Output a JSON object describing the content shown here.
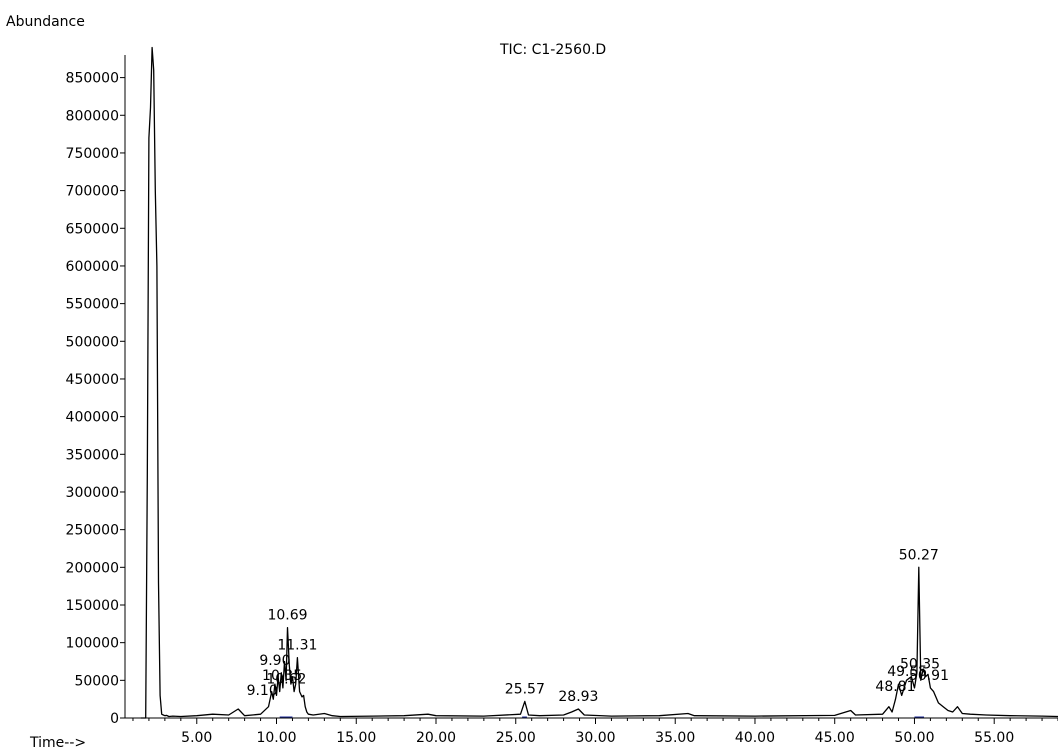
{
  "chart_data": {
    "type": "line",
    "title": "TIC: C1-2560.D",
    "ylabel": "Abundance",
    "xlabel": "Time-->",
    "xlim": [
      0.5,
      59.0
    ],
    "ylim": [
      0,
      880000
    ],
    "x_ticks": [
      "5.00",
      "10.00",
      "15.00",
      "20.00",
      "25.00",
      "30.00",
      "35.00",
      "40.00",
      "45.00",
      "50.00",
      "55.00"
    ],
    "y_ticks": [
      "0",
      "50000",
      "100000",
      "150000",
      "200000",
      "250000",
      "300000",
      "350000",
      "400000",
      "450000",
      "500000",
      "550000",
      "600000",
      "650000",
      "700000",
      "750000",
      "800000",
      "850000"
    ],
    "series": [
      {
        "x": [
          1.5,
          1.8,
          1.9,
          2.0,
          2.1,
          2.2,
          2.3,
          2.4,
          2.5,
          2.6,
          2.7,
          2.8,
          2.9,
          3.0,
          3.1,
          3.25,
          3.5,
          4.0,
          5.0,
          6.0,
          7.0,
          7.6,
          8.0,
          9.0,
          9.5,
          9.7,
          9.8,
          9.9,
          10.0,
          10.1,
          10.2,
          10.3,
          10.4,
          10.5,
          10.6,
          10.69,
          10.8,
          10.9,
          11.0,
          11.1,
          11.2,
          11.31,
          11.45,
          11.6,
          11.7,
          11.8,
          11.9,
          12.0,
          12.3,
          13.0,
          13.5,
          14.0,
          16.0,
          18.0,
          19.5,
          20.0,
          23.0,
          25.3,
          25.57,
          25.8,
          26.5,
          28.0,
          28.5,
          28.93,
          29.3,
          31.0,
          34.0,
          35.8,
          36.2,
          40.0,
          45.0,
          46.0,
          46.3,
          48.0,
          48.4,
          48.6,
          48.81,
          49.0,
          49.2,
          49.5,
          49.8,
          50.0,
          50.15,
          50.27,
          50.4,
          50.55,
          50.7,
          50.85,
          51.0,
          51.2,
          51.5,
          51.8,
          52.1,
          52.4,
          52.7,
          53.0,
          53.5,
          54.5,
          56.0,
          58.0,
          59.0
        ],
        "values": [
          0,
          0,
          320000,
          770000,
          810000,
          890000,
          860000,
          700000,
          600000,
          180000,
          30000,
          5000,
          4000,
          3000,
          3500,
          2000,
          2500,
          2000,
          3000,
          5000,
          4000,
          12000,
          3000,
          5000,
          15000,
          35000,
          25000,
          45000,
          30000,
          55000,
          35000,
          60000,
          40000,
          75000,
          50000,
          120000,
          70000,
          45000,
          55000,
          35000,
          45000,
          80000,
          35000,
          28000,
          30000,
          15000,
          8000,
          5000,
          4000,
          6000,
          3000,
          2000,
          2500,
          3000,
          5000,
          3000,
          2500,
          5000,
          22000,
          4000,
          3000,
          4000,
          8000,
          12000,
          4000,
          2500,
          3000,
          6000,
          3000,
          2500,
          3500,
          10000,
          4000,
          5000,
          15000,
          8000,
          25000,
          45000,
          30000,
          50000,
          55000,
          40000,
          60000,
          200000,
          50000,
          65000,
          55000,
          58000,
          40000,
          35000,
          20000,
          15000,
          10000,
          8000,
          15000,
          6000,
          5000,
          4000,
          3000,
          2500,
          2000
        ]
      }
    ],
    "annotations": [
      {
        "text": "10.69",
        "x": 10.69,
        "y": 120000
      },
      {
        "text": "11.31",
        "x": 11.31,
        "y": 80000
      },
      {
        "text": "9.90",
        "x": 9.9,
        "y": 60000
      },
      {
        "text": "10.35",
        "x": 10.35,
        "y": 40000
      },
      {
        "text": "9.10",
        "x": 9.1,
        "y": 20000
      },
      {
        "text": "10.62",
        "x": 10.62,
        "y": 35000
      },
      {
        "text": "25.57",
        "x": 25.57,
        "y": 22000
      },
      {
        "text": "28.93",
        "x": 28.93,
        "y": 12000
      },
      {
        "text": "50.27",
        "x": 50.27,
        "y": 200000
      },
      {
        "text": "48.81",
        "x": 48.81,
        "y": 25000
      },
      {
        "text": "49.55",
        "x": 49.55,
        "y": 45000
      },
      {
        "text": "50.35",
        "x": 50.35,
        "y": 55000
      },
      {
        "text": "50.91",
        "x": 50.91,
        "y": 40000
      }
    ],
    "grid": false
  }
}
